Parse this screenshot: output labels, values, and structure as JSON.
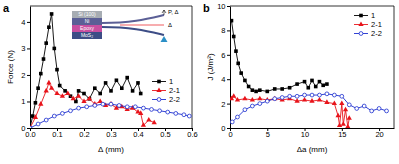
{
  "chart_data": [
    {
      "type": "line",
      "title": "a",
      "x_label": "Δ (mm)",
      "y_label": "Force (N)",
      "xlim": [
        0,
        0.6
      ],
      "xticks": [
        {
          "value": 0,
          "label": "0.0"
        },
        0.1,
        0.2,
        0.3,
        0.4,
        0.5,
        0.6
      ],
      "ylim": [
        0,
        4.6
      ],
      "yticks": [
        0,
        1,
        2,
        3,
        4
      ],
      "legend": "lower right",
      "inset": {
        "layers": [
          "Si (100)",
          "Ni",
          "Epoxy",
          "MoS₂"
        ],
        "labels": [
          "P, Δ",
          "Δ"
        ]
      },
      "series": [
        {
          "name": "1",
          "color": "#000000",
          "marker": "square",
          "x": [
            0,
            0.01,
            0.02,
            0.03,
            0.04,
            0.05,
            0.06,
            0.07,
            0.08,
            0.09,
            0.1,
            0.11,
            0.13,
            0.15,
            0.17,
            0.18,
            0.2,
            0.22,
            0.24,
            0.26,
            0.28,
            0.3,
            0.32,
            0.34,
            0.36,
            0.38,
            0.4,
            0.41
          ],
          "values": [
            0,
            0.45,
            0.95,
            1.5,
            2.05,
            2.6,
            3.2,
            3.8,
            4.3,
            3.0,
            2.2,
            1.6,
            1.4,
            1.2,
            1.0,
            1.4,
            1.3,
            1.1,
            1.5,
            1.3,
            1.7,
            1.4,
            1.8,
            1.5,
            1.9,
            1.4,
            1.7,
            1.3
          ]
        },
        {
          "name": "2-1",
          "color": "#e8141b",
          "marker": "triangle",
          "x": [
            0,
            0.02,
            0.04,
            0.06,
            0.07,
            0.08,
            0.1,
            0.12,
            0.14,
            0.16,
            0.18,
            0.2,
            0.22,
            0.24,
            0.26,
            0.28,
            0.3,
            0.32,
            0.34,
            0.36,
            0.38,
            0.4,
            0.41,
            0.42,
            0.44,
            0.46
          ],
          "values": [
            0,
            0.4,
            0.9,
            1.4,
            1.7,
            1.5,
            1.3,
            1.2,
            1.3,
            1.1,
            1.2,
            1.0,
            1.1,
            0.9,
            1.0,
            0.85,
            0.9,
            0.75,
            0.8,
            0.7,
            0.75,
            0.6,
            0.55,
            0.1,
            0.3,
            0.2
          ]
        },
        {
          "name": "2-2",
          "color": "#1c2ecf",
          "marker": "open-circle",
          "x": [
            0,
            0.03,
            0.06,
            0.09,
            0.12,
            0.15,
            0.18,
            0.21,
            0.24,
            0.27,
            0.3,
            0.33,
            0.36,
            0.39,
            0.42,
            0.45,
            0.48,
            0.51,
            0.54,
            0.57,
            0.59
          ],
          "values": [
            0,
            0.15,
            0.3,
            0.45,
            0.55,
            0.65,
            0.75,
            0.8,
            0.85,
            0.9,
            0.9,
            0.85,
            0.8,
            0.8,
            0.75,
            0.7,
            0.65,
            0.6,
            0.55,
            0.5,
            0.45
          ]
        }
      ]
    },
    {
      "type": "line",
      "title": "b",
      "x_label": "Δa (mm)",
      "y_label": "J (J/m²)",
      "xlim": [
        0,
        22
      ],
      "xticks": [
        0,
        5,
        10,
        15,
        20
      ],
      "ylim": [
        0,
        10
      ],
      "yticks": [
        0,
        2,
        4,
        6,
        8,
        10
      ],
      "legend": "upper right",
      "series": [
        {
          "name": "1",
          "color": "#000000",
          "marker": "square",
          "x": [
            0.2,
            0.5,
            0.8,
            1.1,
            1.5,
            2,
            2.5,
            3,
            3.5,
            4,
            5,
            6,
            7,
            8,
            9,
            10,
            10.5,
            11,
            11.5,
            12,
            12.5,
            13
          ],
          "values": [
            8.8,
            7.5,
            6.3,
            5.3,
            4.5,
            3.9,
            3.4,
            3.1,
            3.0,
            3.1,
            3.0,
            3.2,
            3.2,
            3.3,
            3.6,
            3.8,
            3.3,
            3.9,
            3.4,
            3.8,
            3.5,
            3.6
          ]
        },
        {
          "name": "2-1",
          "color": "#e8141b",
          "marker": "triangle",
          "x": [
            0.2,
            0.5,
            1,
            2,
            3,
            4,
            5,
            6,
            7,
            8,
            9,
            10,
            11,
            12,
            13,
            14,
            14.5,
            14.7,
            15,
            15.2,
            15.5,
            15.8,
            16
          ],
          "values": [
            2.4,
            2.6,
            2.3,
            2.4,
            2.3,
            2.4,
            2.3,
            2.4,
            2.3,
            2.4,
            2.2,
            2.3,
            2.2,
            2.3,
            2.1,
            2.0,
            1.0,
            0.2,
            2.0,
            0.3,
            1.5,
            0.1,
            0.8
          ]
        },
        {
          "name": "2-2",
          "color": "#1c2ecf",
          "marker": "open-circle",
          "x": [
            0.3,
            1,
            2,
            3,
            4,
            5,
            6,
            7,
            8,
            9,
            10,
            11,
            12,
            13,
            14,
            15,
            16,
            17,
            18,
            19,
            20,
            21
          ],
          "values": [
            0.5,
            0.9,
            1.5,
            1.8,
            2.0,
            2.2,
            2.4,
            2.5,
            2.6,
            2.6,
            2.7,
            2.7,
            2.7,
            2.8,
            2.7,
            2.6,
            1.9,
            1.6,
            1.8,
            1.4,
            1.6,
            1.4
          ]
        }
      ]
    }
  ]
}
